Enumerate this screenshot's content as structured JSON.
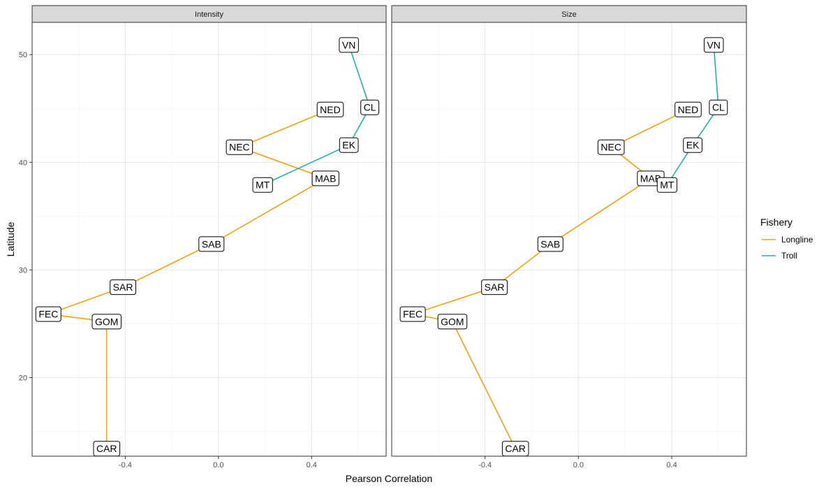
{
  "chart_data": {
    "type": "line",
    "xlabel": "Pearson Correlation",
    "ylabel": "Latitude",
    "xlim": [
      -0.8,
      0.72
    ],
    "ylim": [
      12.7,
      53.0
    ],
    "x_ticks": [
      -0.4,
      0.0,
      0.4
    ],
    "x_tick_labels": [
      "-0.4",
      "0.0",
      "0.4"
    ],
    "y_ticks": [
      20,
      30,
      40,
      50
    ],
    "y_tick_labels": [
      "20",
      "30",
      "40",
      "50"
    ],
    "grid": true,
    "legend": {
      "title": "Fishery",
      "position": "right",
      "entries": [
        {
          "name": "Longline",
          "color": "#F0A30A"
        },
        {
          "name": "Troll",
          "color": "#20B2AA"
        }
      ]
    },
    "panels": [
      {
        "title": "Intensity",
        "series": [
          {
            "name": "Longline",
            "points": [
              {
                "label": "CAR",
                "x": -0.48,
                "y": 13.4
              },
              {
                "label": "GOM",
                "x": -0.48,
                "y": 25.2
              },
              {
                "label": "FEC",
                "x": -0.73,
                "y": 25.9
              },
              {
                "label": "SAR",
                "x": -0.41,
                "y": 28.4
              },
              {
                "label": "SAB",
                "x": -0.03,
                "y": 32.4
              },
              {
                "label": "MAB",
                "x": 0.46,
                "y": 38.5
              },
              {
                "label": "NEC",
                "x": 0.09,
                "y": 41.4
              },
              {
                "label": "NED",
                "x": 0.48,
                "y": 44.9
              }
            ]
          },
          {
            "name": "Troll",
            "points": [
              {
                "label": "MT",
                "x": 0.19,
                "y": 37.9
              },
              {
                "label": "EK",
                "x": 0.56,
                "y": 41.6
              },
              {
                "label": "CL",
                "x": 0.65,
                "y": 45.1
              },
              {
                "label": "VN",
                "x": 0.56,
                "y": 50.9
              }
            ]
          }
        ]
      },
      {
        "title": "Size",
        "series": [
          {
            "name": "Longline",
            "points": [
              {
                "label": "CAR",
                "x": -0.27,
                "y": 13.4
              },
              {
                "label": "GOM",
                "x": -0.54,
                "y": 25.2
              },
              {
                "label": "FEC",
                "x": -0.71,
                "y": 25.9
              },
              {
                "label": "SAR",
                "x": -0.36,
                "y": 28.4
              },
              {
                "label": "SAB",
                "x": -0.12,
                "y": 32.4
              },
              {
                "label": "MAB",
                "x": 0.31,
                "y": 38.5
              },
              {
                "label": "NEC",
                "x": 0.14,
                "y": 41.4
              },
              {
                "label": "NED",
                "x": 0.47,
                "y": 44.9
              }
            ]
          },
          {
            "name": "Troll",
            "points": [
              {
                "label": "MT",
                "x": 0.38,
                "y": 37.9
              },
              {
                "label": "EK",
                "x": 0.49,
                "y": 41.6
              },
              {
                "label": "CL",
                "x": 0.6,
                "y": 45.1
              },
              {
                "label": "VN",
                "x": 0.58,
                "y": 50.9
              }
            ]
          }
        ]
      }
    ]
  }
}
